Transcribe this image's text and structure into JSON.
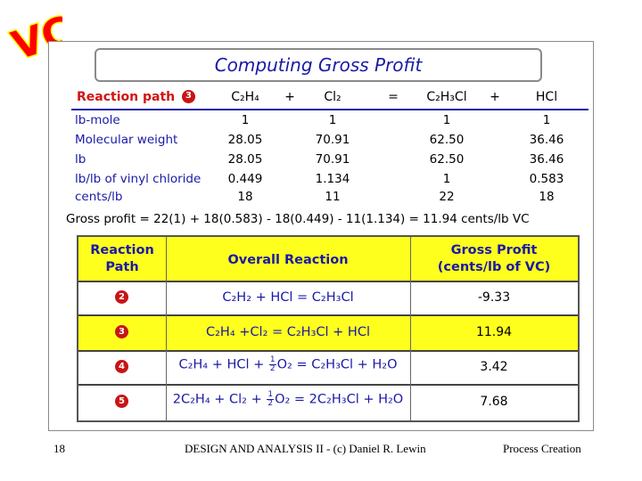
{
  "logo": {
    "text": "VC",
    "fill": "#ff0000",
    "outline": "#ffff00"
  },
  "title": "Computing Gross Profit",
  "top_table": {
    "header": {
      "label": "Reaction path",
      "path_num": "3",
      "cols": [
        "C₂H₄",
        "+",
        "Cl₂",
        "=",
        "C₂H₃Cl",
        "+",
        "HCl"
      ]
    },
    "rows": [
      {
        "label": "lb-mole",
        "values": [
          "1",
          "1",
          "1",
          "1"
        ]
      },
      {
        "label": "Molecular weight",
        "values": [
          "28.05",
          "70.91",
          "62.50",
          "36.46"
        ]
      },
      {
        "label": "lb",
        "values": [
          "28.05",
          "70.91",
          "62.50",
          "36.46"
        ]
      },
      {
        "label": "lb/lb of vinyl chloride",
        "values": [
          "0.449",
          "1.134",
          "1",
          "0.583"
        ]
      },
      {
        "label": "cents/lb",
        "values": [
          "18",
          "11",
          "22",
          "18"
        ]
      }
    ]
  },
  "gross_profit_line": "Gross profit = 22(1) + 18(0.583) - 18(0.449) - 11(1.134) = 11.94 cents/lb VC",
  "bottom_table": {
    "headers": {
      "path_line1": "Reaction",
      "path_line2": "Path",
      "reaction": "Overall Reaction",
      "profit_line1": "Gross Profit",
      "profit_line2": "(cents/lb of VC)"
    },
    "rows": [
      {
        "num": "2",
        "reaction": "C₂H₂ + HCl = C₂H₃Cl",
        "profit": "-9.33",
        "highlight": false
      },
      {
        "num": "3",
        "reaction": "C₂H₄ +Cl₂ = C₂H₃Cl + HCl",
        "profit": "11.94",
        "highlight": true
      },
      {
        "num": "4",
        "reaction_pre": "C₂H₄ + HCl + ",
        "frac_n": "1",
        "frac_d": "2",
        "reaction_post": "O₂ = C₂H₃Cl + H₂O",
        "profit": "3.42",
        "highlight": false
      },
      {
        "num": "5",
        "reaction_pre": "2C₂H₄ + Cl₂ + ",
        "frac_n": "1",
        "frac_d": "2",
        "reaction_post": "O₂ = 2C₂H₃Cl + H₂O",
        "profit": "7.68",
        "highlight": false
      }
    ]
  },
  "footer": {
    "page": "18",
    "center": "DESIGN AND ANALYSIS II - (c) Daniel R. Lewin",
    "right": "Process Creation"
  }
}
